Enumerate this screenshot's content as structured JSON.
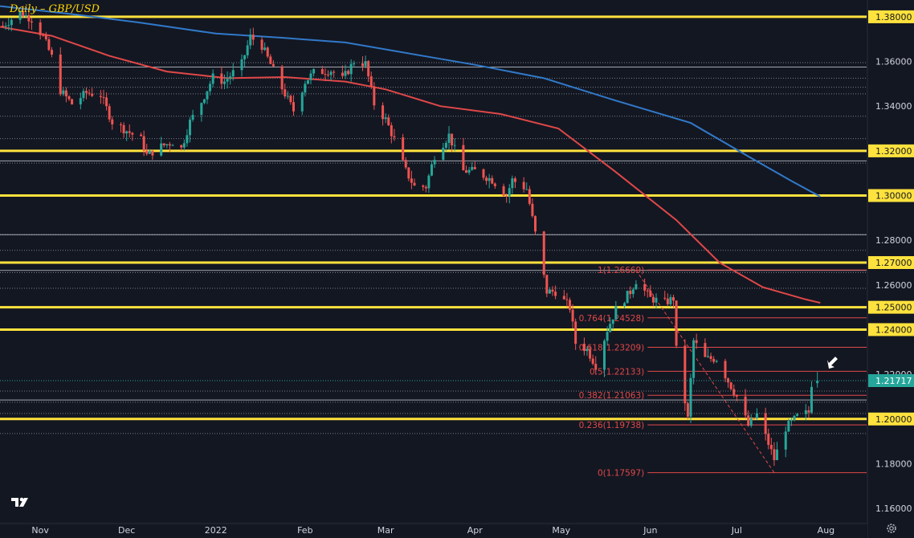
{
  "title": "Daily – GBP/USD",
  "colors": {
    "background": "#131722",
    "key_level": "#ffe23d",
    "up": "#26a69a",
    "down": "#ef5350",
    "ma_fast": "#e04848",
    "ma_slow": "#3179c9",
    "fib": "#e04848",
    "dotted_level": "#9aa0ab",
    "axis_text": "#d1d4dc",
    "price_tag": "#26a69a"
  },
  "chart_data": {
    "type": "candlestick",
    "y_axis": {
      "min": 1.155,
      "max": 1.385,
      "position": "right",
      "decimals": 5,
      "ticks": [
        1.16,
        1.18,
        1.2,
        1.22,
        1.24,
        1.25,
        1.26,
        1.27,
        1.28,
        1.3,
        1.32,
        1.34,
        1.36,
        1.38
      ]
    },
    "x_axis": {
      "start": "2021-10-18",
      "end": "2022-08-14",
      "labels": [
        {
          "date": "2021-11-01",
          "text": "Nov"
        },
        {
          "date": "2021-12-01",
          "text": "Dec"
        },
        {
          "date": "2022-01-01",
          "text": "2022"
        },
        {
          "date": "2022-02-01",
          "text": "Feb"
        },
        {
          "date": "2022-03-01",
          "text": "Mar"
        },
        {
          "date": "2022-04-01",
          "text": "Apr"
        },
        {
          "date": "2022-05-01",
          "text": "May"
        },
        {
          "date": "2022-06-01",
          "text": "Jun"
        },
        {
          "date": "2022-07-01",
          "text": "Jul"
        },
        {
          "date": "2022-08-01",
          "text": "Aug"
        }
      ]
    },
    "key_levels": [
      {
        "value": 1.38,
        "label": "1.38000"
      },
      {
        "value": 1.32,
        "label": "1.32000"
      },
      {
        "value": 1.3,
        "label": "1.30000"
      },
      {
        "value": 1.27,
        "label": "1.27000"
      },
      {
        "value": 1.25,
        "label": "1.25000"
      },
      {
        "value": 1.24,
        "label": "1.24000"
      },
      {
        "value": 1.2,
        "label": "1.20000"
      }
    ],
    "dotted_levels": [
      1.3595,
      1.3525,
      1.3485,
      1.3455,
      1.3355,
      1.3255,
      1.3145,
      1.2825,
      1.2755,
      1.2655,
      1.2585,
      1.2125,
      1.2075,
      1.2025,
      1.1935
    ],
    "solid_levels": [
      1.3575,
      1.3155,
      1.2825,
      1.2665,
      1.2085
    ],
    "fib_retracement": {
      "start_date": "2022-05-31",
      "end_date": "2022-08-14",
      "levels": [
        {
          "ratio": "1",
          "value": 1.26669,
          "label": "1(1.26669)"
        },
        {
          "ratio": "0.764",
          "value": 1.24528,
          "label": "0.764(1.24528)"
        },
        {
          "ratio": "0.618",
          "value": 1.23209,
          "label": "0.618(1.23209)"
        },
        {
          "ratio": "0.5",
          "value": 1.22133,
          "label": "0.5(1.22133)"
        },
        {
          "ratio": "0.382",
          "value": 1.21063,
          "label": "0.382(1.21063)"
        },
        {
          "ratio": "0.236",
          "value": 1.19738,
          "label": "0.236(1.19738)"
        },
        {
          "ratio": "0",
          "value": 1.17597,
          "label": "0(1.17597)"
        }
      ]
    },
    "trend_line": {
      "from": {
        "date": "2022-05-27",
        "value": 1.2666
      },
      "to": {
        "date": "2022-07-14",
        "value": 1.176
      }
    },
    "moving_averages": [
      {
        "key": "ma_slow",
        "points": [
          {
            "date": "2021-10-18",
            "value": 1.3848
          },
          {
            "date": "2021-11-10",
            "value": 1.3815
          },
          {
            "date": "2021-12-05",
            "value": 1.3775
          },
          {
            "date": "2022-01-01",
            "value": 1.3725
          },
          {
            "date": "2022-01-25",
            "value": 1.3705
          },
          {
            "date": "2022-02-15",
            "value": 1.3685
          },
          {
            "date": "2022-03-05",
            "value": 1.3645
          },
          {
            "date": "2022-04-01",
            "value": 1.3585
          },
          {
            "date": "2022-04-25",
            "value": 1.3525
          },
          {
            "date": "2022-05-20",
            "value": 1.3425
          },
          {
            "date": "2022-06-15",
            "value": 1.3325
          },
          {
            "date": "2022-07-05",
            "value": 1.3175
          },
          {
            "date": "2022-07-20",
            "value": 1.3065
          },
          {
            "date": "2022-07-30",
            "value": 1.2995
          }
        ]
      },
      {
        "key": "ma_fast",
        "points": [
          {
            "date": "2021-10-18",
            "value": 1.3755
          },
          {
            "date": "2021-11-05",
            "value": 1.3715
          },
          {
            "date": "2021-11-25",
            "value": 1.3625
          },
          {
            "date": "2021-12-15",
            "value": 1.3555
          },
          {
            "date": "2022-01-05",
            "value": 1.3525
          },
          {
            "date": "2022-01-25",
            "value": 1.353
          },
          {
            "date": "2022-02-15",
            "value": 1.351
          },
          {
            "date": "2022-03-01",
            "value": 1.3475
          },
          {
            "date": "2022-03-20",
            "value": 1.34
          },
          {
            "date": "2022-04-10",
            "value": 1.3365
          },
          {
            "date": "2022-04-30",
            "value": 1.33
          },
          {
            "date": "2022-05-20",
            "value": 1.3105
          },
          {
            "date": "2022-06-10",
            "value": 1.289
          },
          {
            "date": "2022-06-25",
            "value": 1.27
          },
          {
            "date": "2022-07-10",
            "value": 1.259
          },
          {
            "date": "2022-07-25",
            "value": 1.2535
          },
          {
            "date": "2022-07-30",
            "value": 1.252
          }
        ]
      }
    ],
    "price_path": [
      [
        "2021-10-19",
        1.376
      ],
      [
        "2021-10-25",
        1.382
      ],
      [
        "2021-10-29",
        1.379
      ],
      [
        "2021-11-02",
        1.371
      ],
      [
        "2021-11-05",
        1.362
      ],
      [
        "2021-11-08",
        1.347
      ],
      [
        "2021-11-12",
        1.341
      ],
      [
        "2021-11-17",
        1.346
      ],
      [
        "2021-11-22",
        1.345
      ],
      [
        "2021-11-26",
        1.333
      ],
      [
        "2021-12-01",
        1.329
      ],
      [
        "2021-12-06",
        1.325
      ],
      [
        "2021-12-08",
        1.318
      ],
      [
        "2021-12-13",
        1.322
      ],
      [
        "2021-12-17",
        1.324
      ],
      [
        "2021-12-20",
        1.321
      ],
      [
        "2021-12-23",
        1.333
      ],
      [
        "2021-12-27",
        1.342
      ],
      [
        "2021-12-31",
        1.353
      ],
      [
        "2022-01-04",
        1.351
      ],
      [
        "2022-01-10",
        1.359
      ],
      [
        "2022-01-13",
        1.371
      ],
      [
        "2022-01-17",
        1.367
      ],
      [
        "2022-01-21",
        1.356
      ],
      [
        "2022-01-24",
        1.348
      ],
      [
        "2022-01-28",
        1.338
      ],
      [
        "2022-02-01",
        1.351
      ],
      [
        "2022-02-04",
        1.355
      ],
      [
        "2022-02-10",
        1.356
      ],
      [
        "2022-02-14",
        1.352
      ],
      [
        "2022-02-18",
        1.36
      ],
      [
        "2022-02-22",
        1.359
      ],
      [
        "2022-02-25",
        1.341
      ],
      [
        "2022-03-01",
        1.334
      ],
      [
        "2022-03-04",
        1.325
      ],
      [
        "2022-03-08",
        1.311
      ],
      [
        "2022-03-11",
        1.304
      ],
      [
        "2022-03-15",
        1.304
      ],
      [
        "2022-03-18",
        1.318
      ],
      [
        "2022-03-23",
        1.327
      ],
      [
        "2022-03-28",
        1.311
      ],
      [
        "2022-04-01",
        1.311
      ],
      [
        "2022-04-07",
        1.307
      ],
      [
        "2022-04-12",
        1.3
      ],
      [
        "2022-04-14",
        1.307
      ],
      [
        "2022-04-19",
        1.303
      ],
      [
        "2022-04-22",
        1.283
      ],
      [
        "2022-04-26",
        1.257
      ],
      [
        "2022-04-29",
        1.257
      ],
      [
        "2022-05-04",
        1.25
      ],
      [
        "2022-05-06",
        1.234
      ],
      [
        "2022-05-10",
        1.231
      ],
      [
        "2022-05-13",
        1.224
      ],
      [
        "2022-05-17",
        1.24
      ],
      [
        "2022-05-20",
        1.249
      ],
      [
        "2022-05-25",
        1.257
      ],
      [
        "2022-05-27",
        1.262
      ],
      [
        "2022-06-01",
        1.254
      ],
      [
        "2022-06-06",
        1.252
      ],
      [
        "2022-06-09",
        1.254
      ],
      [
        "2022-06-10",
        1.231
      ],
      [
        "2022-06-14",
        1.2
      ],
      [
        "2022-06-16",
        1.235
      ],
      [
        "2022-06-20",
        1.227
      ],
      [
        "2022-06-24",
        1.227
      ],
      [
        "2022-06-28",
        1.217
      ],
      [
        "2022-07-01",
        1.21
      ],
      [
        "2022-07-05",
        1.197
      ],
      [
        "2022-07-08",
        1.202
      ],
      [
        "2022-07-12",
        1.189
      ],
      [
        "2022-07-14",
        1.182
      ],
      [
        "2022-07-18",
        1.196
      ],
      [
        "2022-07-22",
        1.201
      ],
      [
        "2022-07-26",
        1.203
      ],
      [
        "2022-07-27",
        1.216
      ],
      [
        "2022-07-28",
        1.2171
      ]
    ],
    "last_price": {
      "value": 1.21717,
      "label": "1.21717"
    }
  }
}
